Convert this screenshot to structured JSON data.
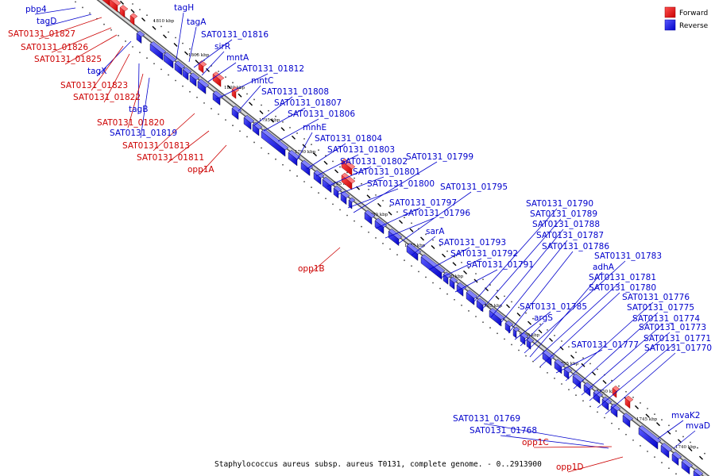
{
  "caption": "Staphylococcus aureus subsp. aureus T0131, complete genome. - 0..2913900",
  "legend": [
    {
      "label": "Forward",
      "color": "#ff0000"
    },
    {
      "label": "Reverse",
      "color": "#0000ff"
    }
  ],
  "scale_labels": [
    "1810 kbp",
    "1805 kbp",
    "1800 kbp",
    "1795 kbp",
    "1790 kbp",
    "1785 kbp",
    "1780 kbp",
    "1775 kbp",
    "1770 kbp",
    "1765 kbp",
    "1760 kbp",
    "1755 kbp",
    "1750 kbp",
    "1745 kbp",
    "1740 kbp"
  ],
  "genes": [
    {
      "name": "pbp4",
      "strand": "reverse"
    },
    {
      "name": "tagD",
      "strand": "reverse"
    },
    {
      "name": "SAT0131_01827",
      "strand": "forward"
    },
    {
      "name": "SAT0131_01826",
      "strand": "forward"
    },
    {
      "name": "SAT0131_01825",
      "strand": "forward"
    },
    {
      "name": "tagX",
      "strand": "reverse"
    },
    {
      "name": "SAT0131_01823",
      "strand": "forward"
    },
    {
      "name": "SAT0131_01822",
      "strand": "forward"
    },
    {
      "name": "tagB",
      "strand": "reverse"
    },
    {
      "name": "SAT0131_01820",
      "strand": "forward"
    },
    {
      "name": "SAT0131_01819",
      "strand": "reverse"
    },
    {
      "name": "SAT0131_01813",
      "strand": "forward"
    },
    {
      "name": "SAT0131_01811",
      "strand": "forward"
    },
    {
      "name": "opp1A",
      "strand": "forward"
    },
    {
      "name": "tagH",
      "strand": "reverse"
    },
    {
      "name": "tagA",
      "strand": "reverse"
    },
    {
      "name": "SAT0131_01816",
      "strand": "reverse"
    },
    {
      "name": "sirR",
      "strand": "reverse"
    },
    {
      "name": "mntA",
      "strand": "reverse"
    },
    {
      "name": "SAT0131_01812",
      "strand": "reverse"
    },
    {
      "name": "mntC",
      "strand": "reverse"
    },
    {
      "name": "SAT0131_01808",
      "strand": "reverse"
    },
    {
      "name": "SAT0131_01807",
      "strand": "reverse"
    },
    {
      "name": "SAT0131_01806",
      "strand": "reverse"
    },
    {
      "name": "mnhE",
      "strand": "reverse"
    },
    {
      "name": "SAT0131_01804",
      "strand": "reverse"
    },
    {
      "name": "SAT0131_01803",
      "strand": "reverse"
    },
    {
      "name": "SAT0131_01802",
      "strand": "reverse"
    },
    {
      "name": "SAT0131_01801",
      "strand": "reverse"
    },
    {
      "name": "SAT0131_01800",
      "strand": "reverse"
    },
    {
      "name": "SAT0131_01799",
      "strand": "reverse"
    },
    {
      "name": "SAT0131_01797",
      "strand": "reverse"
    },
    {
      "name": "SAT0131_01796",
      "strand": "reverse"
    },
    {
      "name": "SAT0131_01795",
      "strand": "reverse"
    },
    {
      "name": "sarA",
      "strand": "reverse"
    },
    {
      "name": "opp1B",
      "strand": "forward"
    },
    {
      "name": "SAT0131_01793",
      "strand": "reverse"
    },
    {
      "name": "SAT0131_01792",
      "strand": "reverse"
    },
    {
      "name": "SAT0131_01791",
      "strand": "reverse"
    },
    {
      "name": "SAT0131_01790",
      "strand": "reverse"
    },
    {
      "name": "SAT0131_01789",
      "strand": "reverse"
    },
    {
      "name": "SAT0131_01788",
      "strand": "reverse"
    },
    {
      "name": "SAT0131_01787",
      "strand": "reverse"
    },
    {
      "name": "SAT0131_01786",
      "strand": "reverse"
    },
    {
      "name": "SAT0131_01785",
      "strand": "reverse"
    },
    {
      "name": "argS",
      "strand": "reverse"
    },
    {
      "name": "SAT0131_01783",
      "strand": "reverse"
    },
    {
      "name": "adhA",
      "strand": "reverse"
    },
    {
      "name": "SAT0131_01781",
      "strand": "reverse"
    },
    {
      "name": "SAT0131_01780",
      "strand": "reverse"
    },
    {
      "name": "SAT0131_01777",
      "strand": "reverse"
    },
    {
      "name": "SAT0131_01776",
      "strand": "reverse"
    },
    {
      "name": "SAT0131_01775",
      "strand": "reverse"
    },
    {
      "name": "SAT0131_01774",
      "strand": "reverse"
    },
    {
      "name": "SAT0131_01773",
      "strand": "reverse"
    },
    {
      "name": "SAT0131_01771",
      "strand": "reverse"
    },
    {
      "name": "SAT0131_01770",
      "strand": "reverse"
    },
    {
      "name": "SAT0131_01769",
      "strand": "reverse"
    },
    {
      "name": "SAT0131_01768",
      "strand": "reverse"
    },
    {
      "name": "opp1C",
      "strand": "forward"
    },
    {
      "name": "opp1D",
      "strand": "forward"
    },
    {
      "name": "mvaK2",
      "strand": "reverse"
    },
    {
      "name": "mvaD",
      "strand": "reverse"
    }
  ]
}
